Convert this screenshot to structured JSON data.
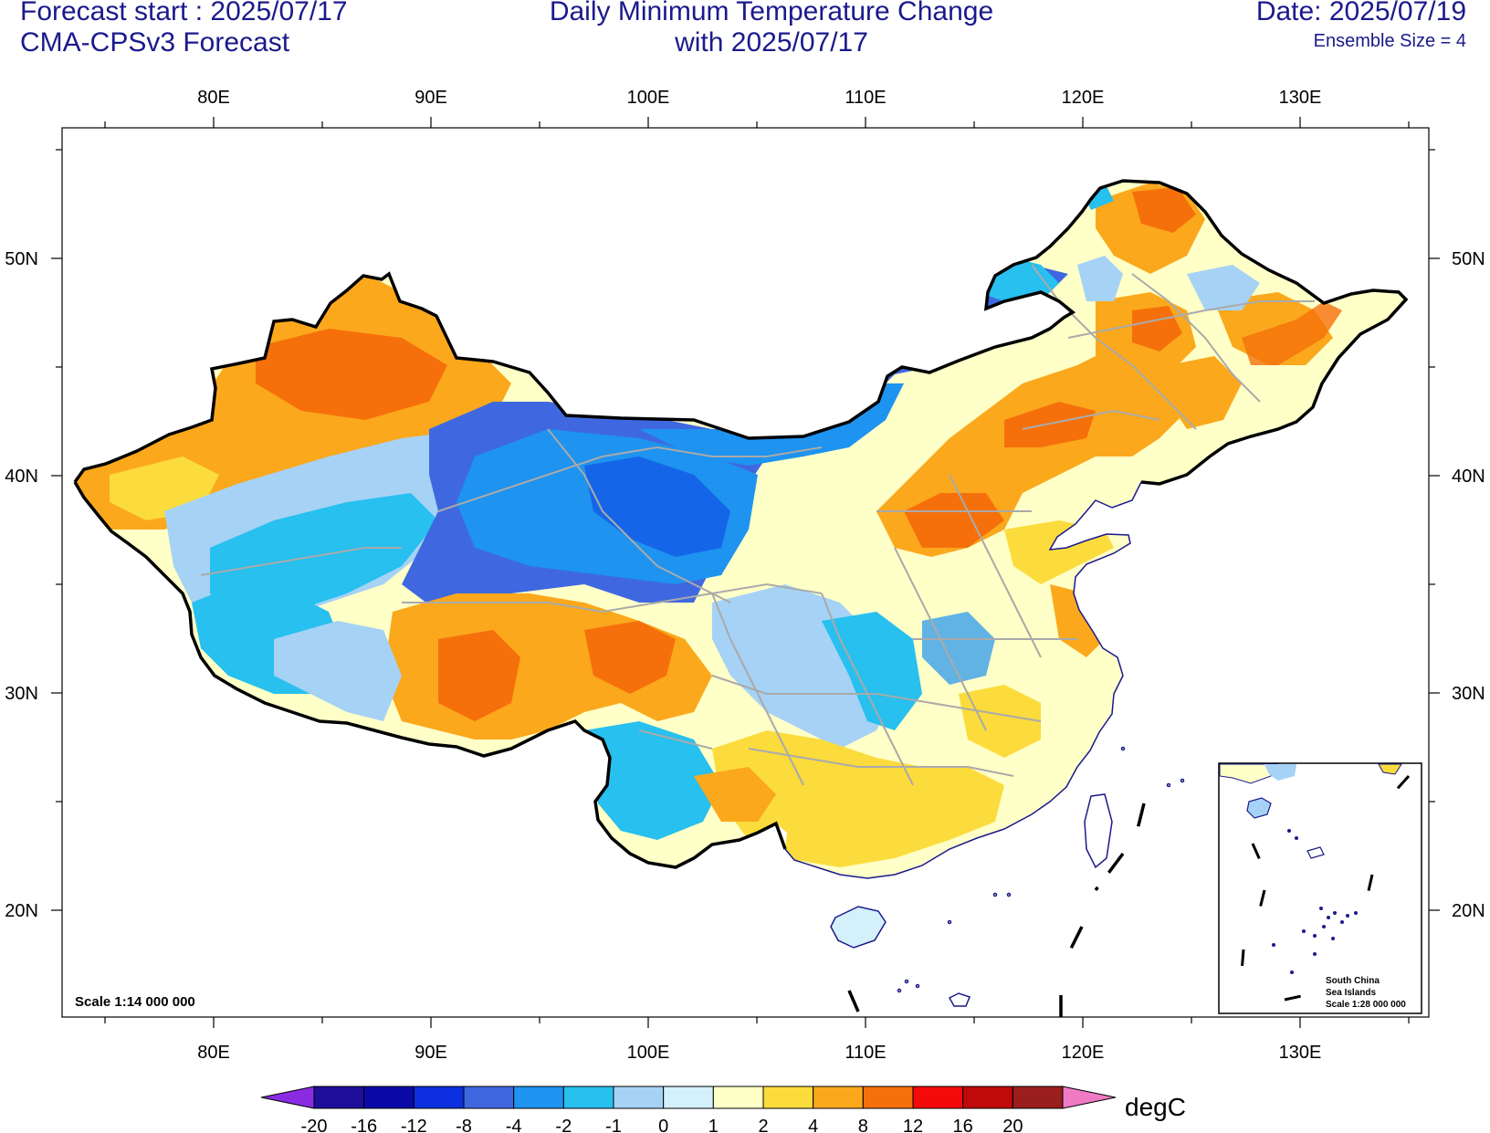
{
  "header": {
    "forecast_start": "Forecast start : 2025/07/17",
    "model": "CMA-CPSv3 Forecast",
    "title_line1": "Daily Minimum Temperature Change",
    "title_line2": "with 2025/07/17",
    "date": "Date: 2025/07/19",
    "ensemble": "Ensemble Size = 4"
  },
  "axes": {
    "lon_labels": [
      "80E",
      "90E",
      "100E",
      "110E",
      "120E",
      "130E"
    ],
    "lat_labels": [
      "50N",
      "40N",
      "30N",
      "20N"
    ]
  },
  "map": {
    "scale_label": "Scale 1:14 000 000",
    "inset": {
      "line1": "South China",
      "line2": "Sea Islands",
      "line3": "Scale 1:28 000 000"
    }
  },
  "colorbar": {
    "unit": "degC",
    "levels": [
      "-20",
      "-16",
      "-12",
      "-8",
      "-4",
      "-2",
      "-1",
      "0",
      "1",
      "2",
      "4",
      "8",
      "12",
      "16",
      "20"
    ],
    "colors": [
      "#1d0f9c",
      "#0a0aa8",
      "#0c2fe0",
      "#3f68e0",
      "#1e93f0",
      "#27c0ef",
      "#a6d2f6",
      "#d4f0fb",
      "#ffffc8",
      "#fbdc3c",
      "#fba81c",
      "#f5700a",
      "#f50a0a",
      "#c00a0a",
      "#9a1e1e"
    ],
    "below_color": "#8a2be2",
    "above_color": "#f07bc4"
  }
}
